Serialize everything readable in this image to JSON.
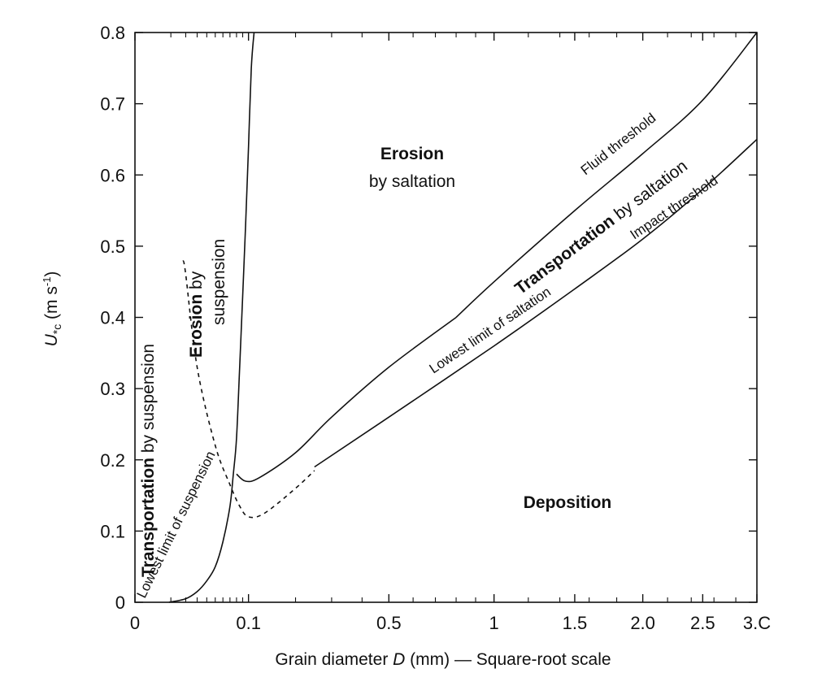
{
  "chart_data": {
    "type": "line",
    "title": "",
    "xlabel": {
      "pre": "Grain diameter ",
      "var": "D",
      "post": " (mm) — Square-root scale"
    },
    "ylabel": {
      "var": "U",
      "sub": "*c",
      "units": " (m s",
      "sup": "-1",
      "close": ")"
    },
    "x_scale": "sqrt",
    "xlim": [
      0,
      3.0
    ],
    "ylim": [
      0,
      0.8
    ],
    "x_ticks": [
      {
        "value": 0,
        "label": "0"
      },
      {
        "value": 0.1,
        "label": "0.1"
      },
      {
        "value": 0.5,
        "label": "0.5"
      },
      {
        "value": 1.0,
        "label": "1"
      },
      {
        "value": 1.5,
        "label": "1.5"
      },
      {
        "value": 2.0,
        "label": "2.0"
      },
      {
        "value": 2.5,
        "label": "2.5"
      },
      {
        "value": 3.0,
        "label": "3.C"
      }
    ],
    "y_ticks": [
      {
        "value": 0,
        "label": "0"
      },
      {
        "value": 0.1,
        "label": "0.1"
      },
      {
        "value": 0.2,
        "label": "0.2"
      },
      {
        "value": 0.3,
        "label": "0.3"
      },
      {
        "value": 0.4,
        "label": "0.4"
      },
      {
        "value": 0.5,
        "label": "0.5"
      },
      {
        "value": 0.6,
        "label": "0.6"
      },
      {
        "value": 0.7,
        "label": "0.7"
      },
      {
        "value": 0.8,
        "label": "0.8"
      }
    ],
    "minor_x_ticks": [
      0.01,
      0.02,
      0.03,
      0.04,
      0.05,
      0.06,
      0.07,
      0.08,
      0.09,
      0.2,
      0.3,
      0.4,
      0.6,
      0.7,
      0.8,
      0.9,
      1.2,
      1.4,
      1.6,
      1.8,
      2.2,
      2.4,
      2.6,
      2.8
    ],
    "series": [
      {
        "style": "solid",
        "points": [
          [
            0.8,
            0.4
          ],
          [
            1.0,
            0.45
          ],
          [
            1.5,
            0.55
          ],
          [
            2.0,
            0.63
          ],
          [
            2.5,
            0.705
          ],
          [
            3.0,
            0.8
          ]
        ],
        "note": "fluid threshold, upper portion"
      },
      {
        "style": "solid",
        "points": [
          [
            0.08,
            0.18
          ],
          [
            0.095,
            0.17
          ],
          [
            0.12,
            0.175
          ],
          [
            0.2,
            0.21
          ],
          [
            0.3,
            0.26
          ],
          [
            0.5,
            0.33
          ],
          [
            0.8,
            0.4
          ]
        ],
        "note": "fluid threshold, lower portion"
      },
      {
        "style": "solid",
        "points": [
          [
            0.009,
            0
          ],
          [
            0.02,
            0.005
          ],
          [
            0.03,
            0.015
          ],
          [
            0.04,
            0.03
          ],
          [
            0.05,
            0.05
          ],
          [
            0.06,
            0.085
          ],
          [
            0.07,
            0.135
          ],
          [
            0.075,
            0.18
          ],
          [
            0.08,
            0.23
          ],
          [
            0.085,
            0.33
          ],
          [
            0.09,
            0.43
          ],
          [
            0.095,
            0.53
          ],
          [
            0.1,
            0.64
          ],
          [
            0.105,
            0.75
          ],
          [
            0.11,
            0.8
          ]
        ],
        "note": "suspension / erosion boundary"
      },
      {
        "style": "dashed",
        "points": [
          [
            0.018,
            0.48
          ],
          [
            0.02,
            0.46
          ],
          [
            0.03,
            0.33
          ],
          [
            0.05,
            0.22
          ],
          [
            0.07,
            0.165
          ],
          [
            0.085,
            0.135
          ],
          [
            0.1,
            0.12
          ],
          [
            0.13,
            0.125
          ],
          [
            0.2,
            0.16
          ],
          [
            0.25,
            0.185
          ]
        ],
        "note": "lowest limit of suspension"
      },
      {
        "style": "solid",
        "points": [
          [
            0.25,
            0.19
          ],
          [
            0.5,
            0.26
          ],
          [
            1.0,
            0.36
          ],
          [
            1.5,
            0.44
          ],
          [
            2.0,
            0.51
          ],
          [
            2.5,
            0.58
          ],
          [
            3.0,
            0.65
          ]
        ],
        "note": "impact threshold / lowest limit of saltation"
      }
    ],
    "annotations": {
      "erosion_saltation": {
        "bold": "Erosion",
        "normal": "by saltation"
      },
      "deposition": {
        "bold": "Deposition"
      },
      "transport_saltation": {
        "bold": "Transportation",
        "normal": " by saltation"
      },
      "fluid_threshold": "Fluid threshold",
      "impact_threshold": "Impact threshold",
      "lowest_saltation": "Lowest limit of saltation",
      "transport_suspension": {
        "bold": "Transportation",
        "normal": " by suspension"
      },
      "erosion_suspension": {
        "bold": "Erosion",
        "normal": " by",
        "line2": "suspension"
      },
      "lowest_suspension": "Lowest limit of suspension"
    },
    "grid": false,
    "legend": "none"
  }
}
